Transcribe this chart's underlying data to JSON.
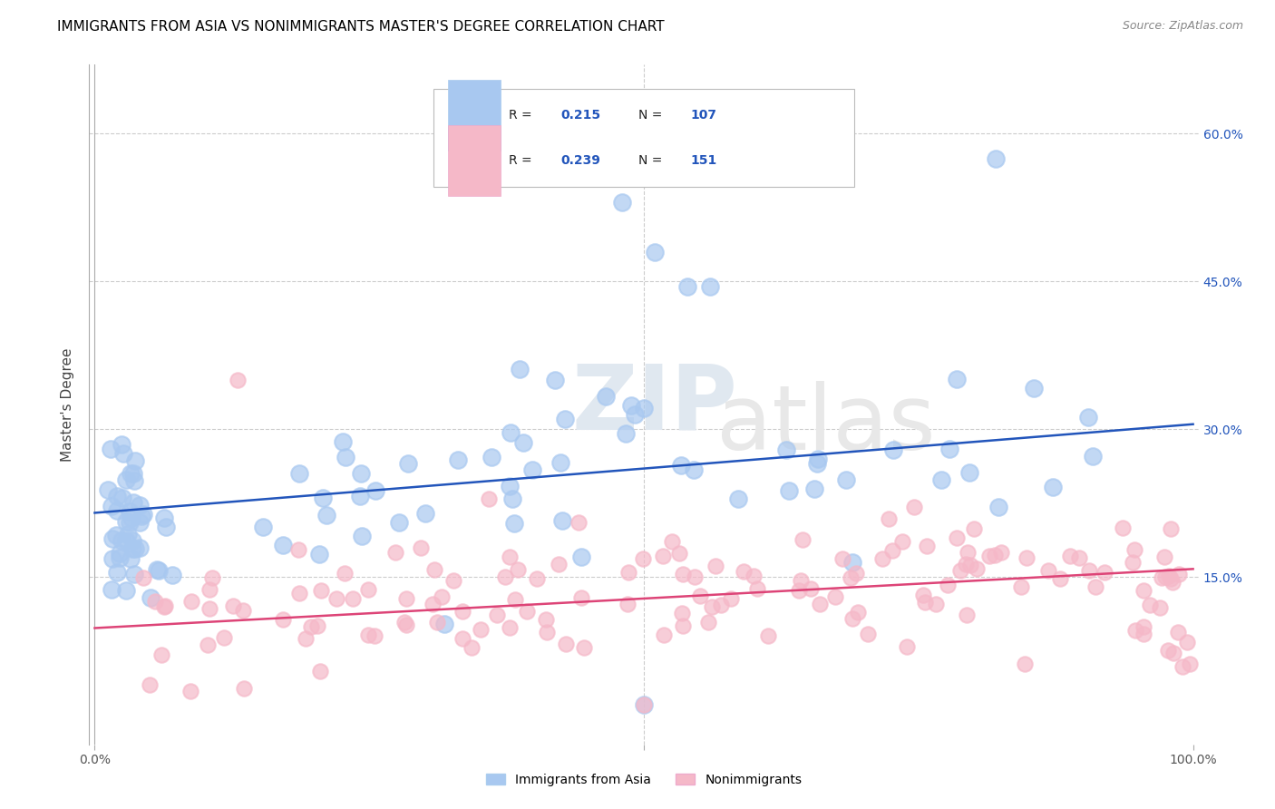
{
  "title": "IMMIGRANTS FROM ASIA VS NONIMMIGRANTS MASTER'S DEGREE CORRELATION CHART",
  "source": "Source: ZipAtlas.com",
  "ylabel": "Master's Degree",
  "color_blue": "#a8c8f0",
  "color_pink": "#f5b8c8",
  "line_color_blue": "#2255bb",
  "line_color_pink": "#dd4477",
  "legend_r_blue": "0.215",
  "legend_n_blue": "107",
  "legend_r_pink": "0.239",
  "legend_n_pink": "151",
  "blue_line_start": 0.215,
  "blue_line_end": 0.305,
  "pink_line_start": 0.098,
  "pink_line_end": 0.158,
  "yticks": [
    0.15,
    0.3,
    0.45,
    0.6
  ],
  "ytick_labels": [
    "15.0%",
    "30.0%",
    "45.0%",
    "60.0%"
  ],
  "ylim_min": -0.02,
  "ylim_max": 0.67,
  "xlim_min": -0.005,
  "xlim_max": 1.005
}
